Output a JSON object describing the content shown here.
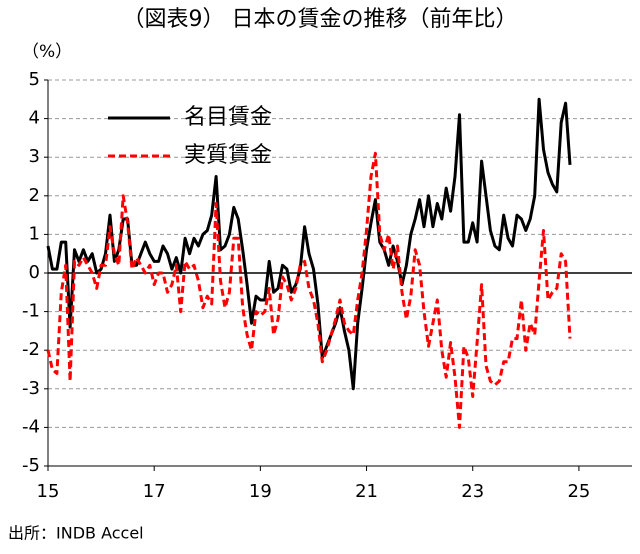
{
  "chart_data": {
    "type": "line",
    "title": "（図表9） 日本の賃金の推移（前年比）",
    "unit_label": "（%）",
    "source": "出所：INDB Accel",
    "x": [
      15,
      15.083,
      15.167,
      15.25,
      15.333,
      15.417,
      15.5,
      15.583,
      15.667,
      15.75,
      15.833,
      15.917,
      16,
      16.083,
      16.167,
      16.25,
      16.333,
      16.417,
      16.5,
      16.583,
      16.667,
      16.75,
      16.833,
      16.917,
      17,
      17.083,
      17.167,
      17.25,
      17.333,
      17.417,
      17.5,
      17.583,
      17.667,
      17.75,
      17.833,
      17.917,
      18,
      18.083,
      18.167,
      18.25,
      18.333,
      18.417,
      18.5,
      18.583,
      18.667,
      18.75,
      18.833,
      18.917,
      19,
      19.083,
      19.167,
      19.25,
      19.333,
      19.417,
      19.5,
      19.583,
      19.667,
      19.75,
      19.833,
      19.917,
      20,
      20.083,
      20.167,
      20.25,
      20.333,
      20.417,
      20.5,
      20.583,
      20.667,
      20.75,
      20.833,
      20.917,
      21,
      21.083,
      21.167,
      21.25,
      21.333,
      21.417,
      21.5,
      21.583,
      21.667,
      21.75,
      21.833,
      21.917,
      22,
      22.083,
      22.167,
      22.25,
      22.333,
      22.417,
      22.5,
      22.583,
      22.667,
      22.75,
      22.833,
      22.917,
      23,
      23.083,
      23.167,
      23.25,
      23.333,
      23.417,
      23.5,
      23.583,
      23.667,
      23.75,
      23.833,
      23.917,
      24,
      24.083,
      24.167,
      24.25,
      24.333,
      24.417,
      24.5,
      24.583,
      24.667,
      24.75,
      24.833
    ],
    "series": [
      {
        "name": "名目賃金",
        "color": "#000000",
        "linestyle": "solid",
        "values": [
          0.7,
          0.1,
          0.1,
          0.8,
          0.8,
          -1.4,
          0.6,
          0.3,
          0.6,
          0.3,
          0.5,
          0.0,
          0.1,
          0.5,
          1.5,
          0.3,
          0.6,
          1.4,
          1.4,
          0.2,
          0.2,
          0.5,
          0.8,
          0.5,
          0.3,
          0.3,
          0.7,
          0.5,
          0.1,
          0.4,
          0.0,
          0.9,
          0.5,
          0.9,
          0.7,
          1.0,
          1.1,
          1.5,
          2.5,
          0.6,
          0.7,
          1.0,
          1.7,
          1.4,
          0.6,
          -0.3,
          -1.3,
          -0.6,
          -0.7,
          -0.7,
          0.3,
          -0.5,
          -0.4,
          0.2,
          0.1,
          -0.5,
          -0.3,
          0.1,
          1.2,
          0.5,
          0.1,
          -0.8,
          -2.2,
          -1.9,
          -1.6,
          -1.3,
          -0.9,
          -1.5,
          -2.0,
          -3.0,
          -1.3,
          -0.4,
          0.6,
          1.3,
          1.9,
          0.8,
          0.6,
          0.2,
          0.7,
          0.3,
          -0.3,
          0.2,
          1.0,
          1.4,
          1.9,
          1.2,
          2.0,
          1.2,
          1.8,
          1.4,
          2.2,
          1.6,
          2.5,
          4.1,
          0.8,
          0.8,
          1.3,
          0.8,
          2.9,
          2.0,
          1.1,
          0.7,
          0.6,
          1.5,
          0.9,
          0.7,
          1.5,
          1.4,
          1.1,
          1.4,
          2.0,
          4.5,
          3.2,
          2.6,
          2.3,
          2.1,
          3.9,
          4.4,
          2.8
        ]
      },
      {
        "name": "実質賃金",
        "color": "#ff0000",
        "linestyle": "dashed",
        "values": [
          -2.0,
          -2.5,
          -2.6,
          -0.5,
          0.2,
          -2.8,
          0.3,
          0.2,
          0.4,
          0.2,
          0.0,
          -0.4,
          0.2,
          0.2,
          1.2,
          0.5,
          0.2,
          2.0,
          1.3,
          0.1,
          0.4,
          0.2,
          0.0,
          0.2,
          -0.3,
          0.0,
          0.0,
          -0.5,
          -0.3,
          0.2,
          -1.0,
          0.3,
          0.1,
          0.2,
          -0.2,
          -0.9,
          -0.6,
          -0.8,
          1.8,
          -0.2,
          -0.9,
          -0.5,
          0.9,
          0.9,
          -0.9,
          -1.6,
          -2.0,
          -1.0,
          -1.1,
          -1.0,
          -0.4,
          -1.6,
          -1.2,
          -0.1,
          -0.3,
          -0.7,
          -0.4,
          0.2,
          0.3,
          -0.4,
          -0.7,
          -1.3,
          -2.3,
          -2.0,
          -1.6,
          -1.2,
          -0.7,
          -1.3,
          -1.5,
          -1.6,
          -0.7,
          0.0,
          1.1,
          2.5,
          3.1,
          1.0,
          0.6,
          1.0,
          0.1,
          0.7,
          -0.5,
          -1.2,
          -0.6,
          0.6,
          0.2,
          -1.0,
          -1.9,
          -1.3,
          -0.7,
          -2.0,
          -2.7,
          -1.8,
          -2.7,
          -4.0,
          -1.9,
          -2.2,
          -3.2,
          -1.8,
          -0.3,
          -2.4,
          -2.8,
          -2.9,
          -2.8,
          -2.3,
          -2.3,
          -1.7,
          -1.7,
          -0.7,
          -2.0,
          -1.3,
          -1.6,
          -0.2,
          1.1,
          -0.7,
          -0.5,
          -0.4,
          0.5,
          0.3,
          -1.7
        ]
      }
    ],
    "xlim": [
      15,
      26
    ],
    "xticks": [
      15,
      17,
      19,
      21,
      23,
      25
    ],
    "ylim": [
      -5,
      5
    ],
    "yticks": [
      -5,
      -4,
      -3,
      -2,
      -1,
      0,
      1,
      2,
      3,
      4,
      5
    ],
    "grid": true,
    "legend": "upper left"
  }
}
